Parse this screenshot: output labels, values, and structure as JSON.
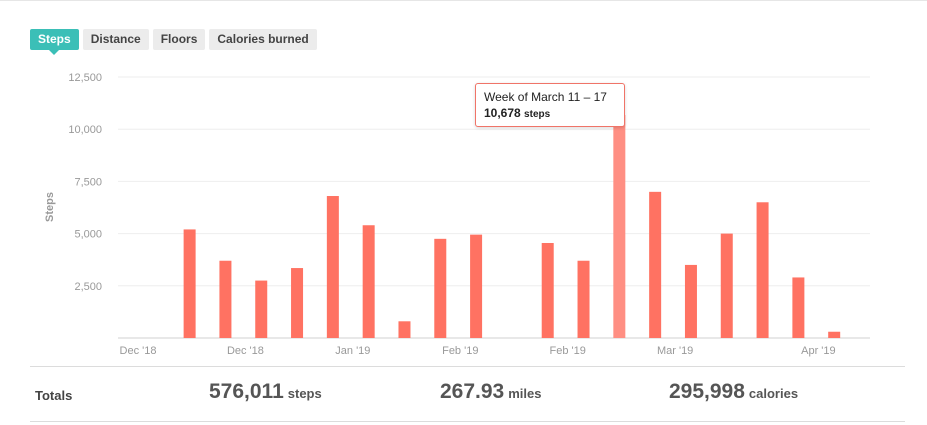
{
  "tabs": [
    {
      "label": "Steps",
      "active": true
    },
    {
      "label": "Distance",
      "active": false
    },
    {
      "label": "Floors",
      "active": false
    },
    {
      "label": "Calories burned",
      "active": false
    }
  ],
  "tooltip": {
    "title": "Week of March 11 – 17",
    "value": "10,678",
    "unit": "steps"
  },
  "totals": {
    "label": "Totals",
    "steps_value": "576,011",
    "steps_unit": "steps",
    "distance_value": "267.93",
    "distance_unit": "miles",
    "calories_value": "295,998",
    "calories_unit": "calories"
  },
  "colors": {
    "bar": "#ff7262",
    "bar_highlight": "#ff8f83",
    "accent": "#3bbfb7",
    "grid": "#eeeeee",
    "axis_text": "#999999"
  },
  "chart_data": {
    "type": "bar",
    "ylabel": "Steps",
    "xlabel": "",
    "ylim": [
      0,
      12500
    ],
    "yticks": [
      2500,
      5000,
      7500,
      10000,
      12500
    ],
    "ytick_labels": [
      "2,500",
      "5,000",
      "7,500",
      "10,000",
      "12,500"
    ],
    "grid": true,
    "x_tick_labels": [
      "Dec '18",
      "Dec '18",
      "Jan '19",
      "Feb '19",
      "Feb '19",
      "Mar '19",
      "Apr '19"
    ],
    "x_tick_slots": [
      0,
      3,
      6,
      9,
      12,
      15,
      19
    ],
    "slots": 21,
    "values": [
      0,
      5200,
      3700,
      2750,
      3350,
      6800,
      5400,
      800,
      4750,
      4950,
      0,
      4550,
      3700,
      10678,
      7000,
      3500,
      5000,
      6500,
      2900,
      300
    ],
    "highlight_index": 13
  }
}
